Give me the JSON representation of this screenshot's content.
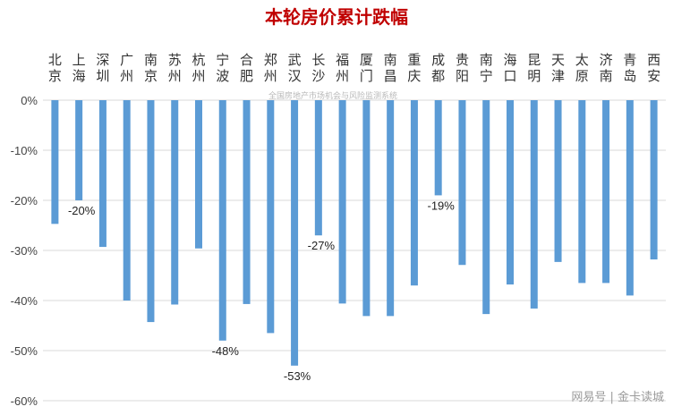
{
  "chart_data": {
    "type": "bar",
    "title": "本轮房价累计跌幅",
    "xlabel": "",
    "ylabel": "",
    "ylim": [
      -60,
      0
    ],
    "yticks": [
      0,
      -10,
      -20,
      -30,
      -40,
      -50,
      -60
    ],
    "ytick_labels": [
      "0%",
      "-10%",
      "-20%",
      "-30%",
      "-40%",
      "-50%",
      "-60%"
    ],
    "grid": true,
    "legend": "none",
    "categories": [
      "北京",
      "上海",
      "深圳",
      "广州",
      "南京",
      "苏州",
      "杭州",
      "宁波",
      "合肥",
      "郑州",
      "武汉",
      "长沙",
      "福州",
      "厦门",
      "南昌",
      "重庆",
      "成都",
      "贵阳",
      "南宁",
      "海口",
      "昆明",
      "天津",
      "太原",
      "济南",
      "青岛",
      "西安"
    ],
    "values": [
      -24.7,
      -20,
      -29.3,
      -40,
      -44.3,
      -40.8,
      -29.6,
      -48,
      -40.7,
      -46.5,
      -53,
      -27,
      -40.6,
      -43.1,
      -43.1,
      -37,
      -19,
      -32.9,
      -42.7,
      -36.8,
      -41.6,
      -32.3,
      -36.5,
      -36.5,
      -39,
      -31.8
    ],
    "data_labels": [
      {
        "category": "上海",
        "text": "-20%"
      },
      {
        "category": "宁波",
        "text": "-48%"
      },
      {
        "category": "武汉",
        "text": "-53%"
      },
      {
        "category": "长沙",
        "text": "-27%"
      },
      {
        "category": "成都",
        "text": "-19%"
      }
    ],
    "colors": {
      "bar": "#5b9bd5",
      "title": "#c00000",
      "grid": "#d9d9d9"
    }
  },
  "watermark": "全国房地产市场机会与风险监测系统",
  "footer": "网易号 | 金卡读城"
}
